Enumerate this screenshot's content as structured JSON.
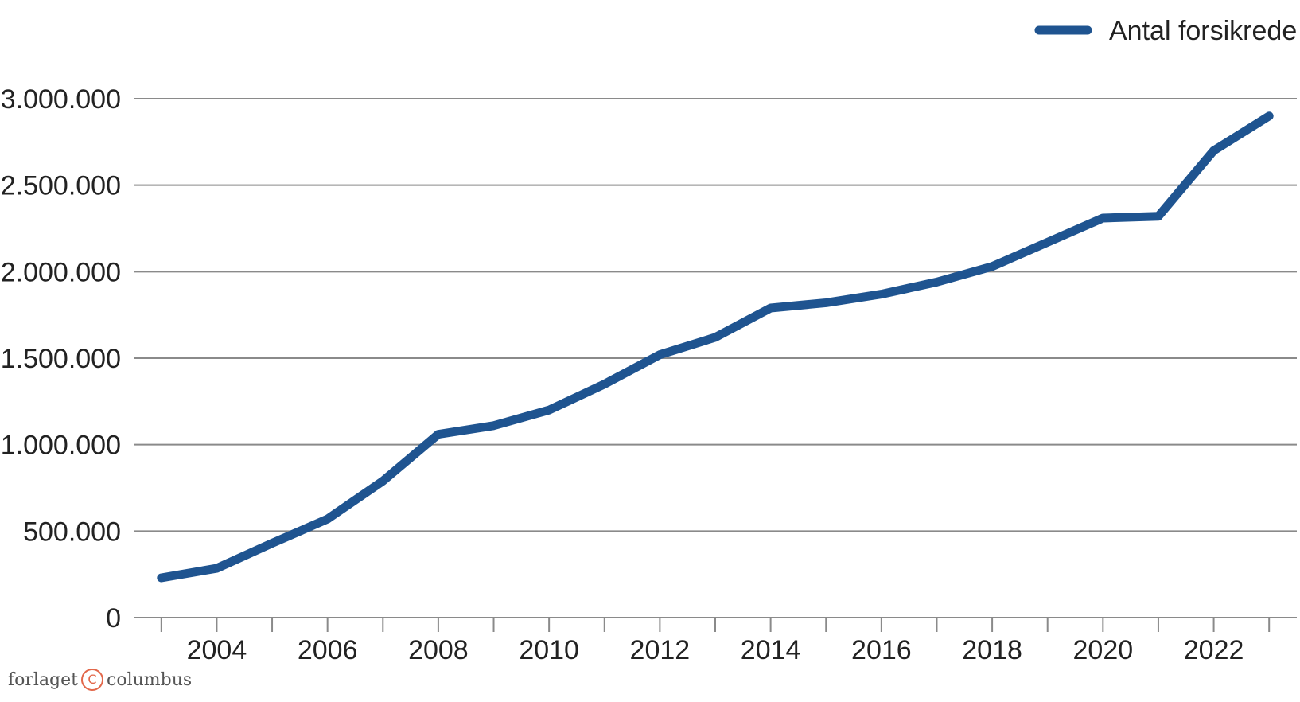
{
  "chart_data": {
    "type": "line",
    "x": [
      2003,
      2004,
      2005,
      2006,
      2007,
      2008,
      2009,
      2010,
      2011,
      2012,
      2013,
      2014,
      2015,
      2016,
      2017,
      2018,
      2019,
      2020,
      2021,
      2022,
      2023
    ],
    "series": [
      {
        "name": "Antal forsikrede",
        "color": "#1f5490",
        "values": [
          230000,
          285000,
          430000,
          570000,
          790000,
          1060000,
          1110000,
          1200000,
          1350000,
          1520000,
          1620000,
          1790000,
          1820000,
          1870000,
          1940000,
          2030000,
          2170000,
          2310000,
          2320000,
          2700000,
          2900000
        ]
      }
    ],
    "xticks": [
      "2004",
      "2006",
      "2008",
      "2010",
      "2012",
      "2014",
      "2016",
      "2018",
      "2020",
      "2022"
    ],
    "xtick_values": [
      2004,
      2006,
      2008,
      2010,
      2012,
      2014,
      2016,
      2018,
      2020,
      2022
    ],
    "yticks": [
      "0",
      "500.000",
      "1.000.000",
      "1.500.000",
      "2.000.000",
      "2.500.000",
      "3.000.000"
    ],
    "ytick_values": [
      0,
      500000,
      1000000,
      1500000,
      2000000,
      2500000,
      3000000
    ],
    "ylim": [
      0,
      3000000
    ],
    "xlim": [
      2002.5,
      2023.5
    ],
    "grid": true,
    "legend_position": "top-right",
    "title": "",
    "xlabel": "",
    "ylabel": ""
  },
  "footer": {
    "left_text": "forlaget",
    "icon": "copyright-icon",
    "right_text": "columbus"
  }
}
